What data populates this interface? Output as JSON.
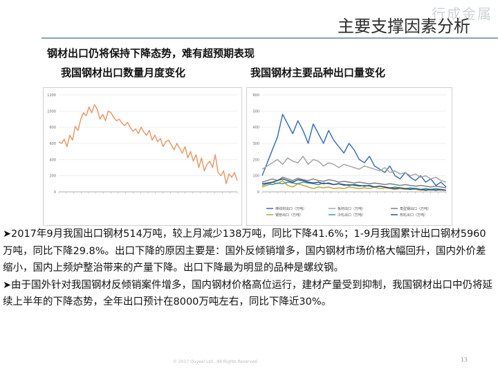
{
  "header": {
    "title": "主要支撑因素分析",
    "watermark": "行成金属"
  },
  "subtitle": "钢材出口仍将保持下降态势，难有超预期表现",
  "charts_titles": {
    "left": "我国钢材出口数量月度变化",
    "right": "我国钢材主要品种出口量变化"
  },
  "chart_data": [
    {
      "type": "line",
      "title": "我国钢材出口数量月度变化",
      "ylim": [
        0,
        1200
      ],
      "yticks": [
        0,
        200,
        400,
        600,
        800,
        1000,
        1200
      ],
      "series": [
        {
          "color": "#e89a6a",
          "values": [
            620,
            600,
            650,
            560,
            700,
            640,
            810,
            760,
            900,
            980,
            940,
            1050,
            980,
            1080,
            1020,
            900,
            960,
            880,
            1000,
            980,
            920,
            880,
            900,
            850,
            820,
            860,
            800,
            750,
            780,
            720,
            800,
            740,
            700,
            760,
            640,
            700,
            620,
            660,
            560,
            620,
            640,
            580,
            520,
            600,
            540,
            480,
            560,
            420,
            500,
            380,
            460,
            300,
            420,
            260,
            340,
            380,
            300,
            460,
            240,
            200,
            260,
            100,
            220,
            180,
            240,
            140
          ]
        }
      ]
    },
    {
      "type": "line",
      "title": "我国钢材主要品种出口量变化",
      "ylim": [
        0,
        600
      ],
      "yticks": [
        0,
        100,
        200,
        300,
        400,
        500,
        600
      ],
      "legend": [
        "棒线材出口（万吨）",
        "板材出口（万吨）",
        "角型钢出口（万吨）",
        "钢管出口（万吨）",
        "冷轧出口（万吨）",
        "热轧出口（万吨）"
      ],
      "series": [
        {
          "color": "#3d6fb4",
          "values": [
            100,
            180,
            260,
            340,
            480,
            420,
            360,
            440,
            380,
            300,
            420,
            360,
            300,
            380,
            320,
            280,
            240,
            300,
            260,
            200,
            180,
            220,
            160,
            140,
            120,
            160,
            100,
            80,
            120,
            90,
            70,
            100,
            60,
            80,
            40,
            60,
            30
          ]
        },
        {
          "color": "#a6a6a6",
          "values": [
            140,
            160,
            180,
            200,
            170,
            210,
            190,
            180,
            220,
            170,
            200,
            190,
            160,
            180,
            170,
            150,
            170,
            160,
            150,
            140,
            160,
            150,
            140,
            130,
            150,
            120,
            130,
            110,
            120,
            100,
            110,
            90,
            100,
            80,
            90,
            70,
            60
          ]
        },
        {
          "color": "#7f7f7f",
          "values": [
            60,
            70,
            80,
            70,
            90,
            80,
            70,
            85,
            75,
            70,
            80,
            70,
            65,
            75,
            70,
            60,
            65,
            60,
            55,
            60,
            55,
            50,
            55,
            50,
            45,
            50,
            45,
            40,
            45,
            40,
            35,
            40,
            35,
            30,
            35,
            30,
            25
          ]
        },
        {
          "color": "#c9a227",
          "values": [
            30,
            40,
            60,
            50,
            70,
            40,
            30,
            50,
            40,
            30,
            20,
            30,
            25,
            30,
            20,
            25,
            20,
            30,
            25,
            20,
            25,
            20,
            30,
            20,
            25,
            20,
            15,
            20,
            15,
            20,
            15,
            10,
            15,
            10,
            15,
            10,
            10
          ]
        },
        {
          "color": "#2f9bb0",
          "values": [
            40,
            50,
            45,
            55,
            50,
            60,
            55,
            50,
            60,
            55,
            50,
            45,
            55,
            50,
            45,
            50,
            40,
            45,
            40,
            35,
            40,
            35,
            30,
            35,
            30,
            25,
            30,
            25,
            20,
            25,
            20,
            15,
            20,
            15,
            20,
            15,
            10
          ]
        },
        {
          "color": "#2b4a8a",
          "values": [
            50,
            55,
            60,
            70,
            80,
            70,
            60,
            75,
            70,
            60,
            55,
            60,
            50,
            55,
            45,
            50,
            45,
            40,
            45,
            40,
            35,
            40,
            30,
            35,
            30,
            25,
            20,
            25,
            20,
            15,
            20,
            15,
            10,
            15,
            10,
            15,
            10
          ]
        }
      ]
    }
  ],
  "body": {
    "p1": "2017年9月我国出口钢材514万吨，较上月减少138万吨，同比下降41.6%；1-9月我国累计出口钢材5960万吨，同比下降29.8%。出口下降的原因主要是：国外反倾销增多，国内钢材市场价格大幅回升，国内外价差缩小，国内上频炉整治带来的产量下降。出口下降最为明显的品种是螺纹钢。",
    "p2": "由于国外针对我国钢材反倾销案件增多，国内钢材价格高位运行，建材产量受到抑制，我国钢材出口中仍将延续上半年的下降态势，全年出口预计在8000万吨左右，同比下降近30%。",
    "bullet": "➤"
  },
  "footer": {
    "copyright": "© 2017 Ouyeel Ltd., All Rights Reserved.",
    "page": "13"
  }
}
